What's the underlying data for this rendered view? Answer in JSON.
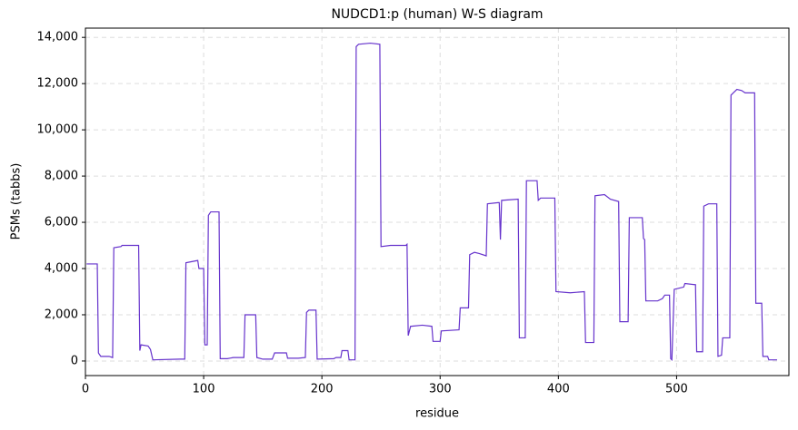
{
  "chart_data": {
    "type": "line",
    "title": "NUDCD1:p (human) W-S diagram",
    "x_label": "residue",
    "y_label": "PSMs (tabbs)",
    "color": "#6633cc",
    "grid": true,
    "x": [
      1,
      10,
      11,
      13,
      20,
      23,
      24,
      30,
      31,
      45,
      46,
      47,
      53,
      55,
      57,
      80,
      84,
      85,
      90,
      95,
      96,
      100,
      101,
      103,
      104,
      106,
      113,
      114,
      120,
      125,
      134,
      135,
      144,
      145,
      150,
      158,
      160,
      170,
      171,
      180,
      186,
      187,
      189,
      195,
      196,
      210,
      212,
      216,
      217,
      222,
      223,
      228,
      229,
      231,
      241,
      249,
      250,
      258,
      271,
      272,
      273,
      275,
      285,
      293,
      294,
      300,
      301,
      316,
      317,
      324,
      325,
      329,
      333,
      339,
      340,
      349,
      350,
      351,
      352,
      366,
      367,
      372,
      373,
      382,
      383,
      385,
      397,
      398,
      410,
      422,
      423,
      430,
      431,
      439,
      444,
      451,
      452,
      459,
      460,
      471,
      472,
      473,
      474,
      484,
      488,
      490,
      494,
      495,
      496,
      498,
      502,
      506,
      507,
      516,
      517,
      522,
      523,
      527,
      534,
      535,
      538,
      539,
      545,
      546,
      548,
      551,
      555,
      558,
      566,
      567,
      572,
      573,
      577,
      578,
      585
    ],
    "values": [
      4200,
      4200,
      350,
      200,
      200,
      150,
      4900,
      4950,
      5000,
      5000,
      450,
      700,
      650,
      500,
      50,
      80,
      80,
      4250,
      4300,
      4350,
      4000,
      4000,
      700,
      700,
      6300,
      6450,
      6450,
      100,
      100,
      150,
      150,
      2000,
      2000,
      150,
      80,
      80,
      350,
      350,
      120,
      120,
      150,
      2100,
      2200,
      2200,
      80,
      100,
      150,
      150,
      450,
      450,
      50,
      50,
      13600,
      13700,
      13750,
      13700,
      4950,
      5000,
      5000,
      5050,
      1100,
      1500,
      1550,
      1500,
      850,
      850,
      1300,
      1350,
      2300,
      2300,
      4600,
      4700,
      4650,
      4550,
      6800,
      6850,
      6850,
      5250,
      6950,
      7000,
      1000,
      1000,
      7800,
      7800,
      6950,
      7050,
      7050,
      3000,
      2950,
      3000,
      800,
      800,
      7150,
      7200,
      7000,
      6900,
      1700,
      1700,
      6200,
      6200,
      5300,
      5250,
      2600,
      2600,
      2700,
      2850,
      2850,
      100,
      50,
      3100,
      3150,
      3200,
      3350,
      3300,
      400,
      400,
      6700,
      6800,
      6800,
      200,
      250,
      1000,
      1000,
      11500,
      11600,
      11750,
      11700,
      11600,
      11600,
      2500,
      2500,
      200,
      200,
      50,
      50
    ],
    "xlim": [
      0,
      595
    ],
    "xticks": [
      0,
      100,
      200,
      300,
      400,
      500
    ],
    "ylim": [
      -630,
      14400
    ],
    "yticks": [
      0,
      {
        "value": 2000,
        "label": "2,000"
      },
      {
        "value": 4000,
        "label": "4,000"
      },
      {
        "value": 6000,
        "label": "6,000"
      },
      {
        "value": 8000,
        "label": "8,000"
      },
      {
        "value": 10000,
        "label": "10,000"
      },
      {
        "value": 12000,
        "label": "12,000"
      },
      {
        "value": 14000,
        "label": "14,000"
      }
    ]
  }
}
